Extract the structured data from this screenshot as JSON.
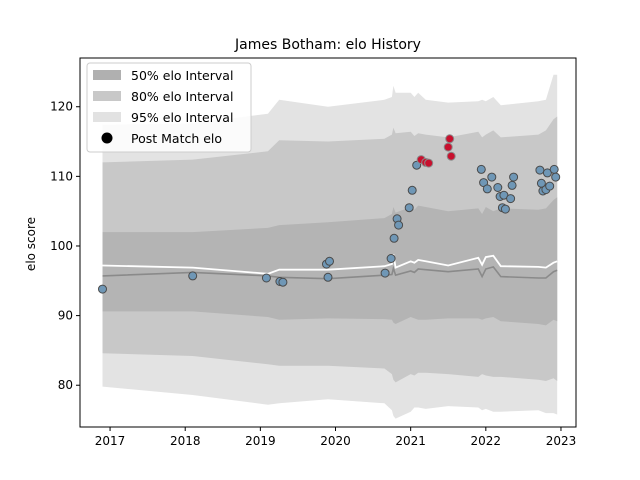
{
  "chart_data": {
    "type": "line",
    "title": "James Botham: elo History",
    "xlabel": "",
    "ylabel": "elo score",
    "xlim": [
      2016.6,
      2023.2
    ],
    "ylim": [
      74,
      127
    ],
    "x_ticks": [
      2017,
      2018,
      2019,
      2020,
      2021,
      2022,
      2023
    ],
    "x_tick_labels": [
      "2017",
      "2018",
      "2019",
      "2020",
      "2021",
      "2022",
      "2023"
    ],
    "y_ticks": [
      80,
      90,
      100,
      110,
      120
    ],
    "y_tick_labels": [
      "80",
      "90",
      "100",
      "110",
      "120"
    ],
    "legend_position": "top-left",
    "legend": [
      {
        "label": "50% elo Interval",
        "color": "#b0b0b0"
      },
      {
        "label": "80% elo Interval",
        "color": "#c8c8c8"
      },
      {
        "label": "95% elo Interval",
        "color": "#e2e2e2"
      },
      {
        "label": "Post Match elo",
        "color": "#000000"
      }
    ],
    "colors": {
      "band50": "#b4b4b4",
      "band80": "#c8c8c8",
      "band95": "#e3e3e3",
      "median_line": "#8a8a8a",
      "mean_line": "#ffffff",
      "point_normal": "#6f97b6",
      "point_high": "#c8102e",
      "point_edge": "#4a4a4a"
    },
    "timeline": {
      "x": [
        2016.9,
        2018.1,
        2019.1,
        2019.25,
        2019.9,
        2020.65,
        2020.75,
        2020.77,
        2020.8,
        2021.0,
        2021.05,
        2021.1,
        2021.2,
        2021.5,
        2021.9,
        2021.95,
        2022.0,
        2022.1,
        2022.2,
        2022.7,
        2022.8,
        2022.9,
        2022.95
      ],
      "median": [
        95.7,
        96.2,
        95.7,
        95.5,
        95.3,
        95.8,
        95.9,
        96.8,
        95.8,
        96.4,
        96.2,
        96.7,
        96.6,
        96.3,
        96.7,
        95.6,
        96.7,
        97.0,
        95.6,
        95.4,
        95.4,
        96.3,
        96.5
      ],
      "mean": [
        97.2,
        96.9,
        96.0,
        96.6,
        96.6,
        97.1,
        97.4,
        98.8,
        96.9,
        97.8,
        97.6,
        98.0,
        97.8,
        97.2,
        98.3,
        97.3,
        98.4,
        98.6,
        97.1,
        97.0,
        96.9,
        97.6,
        97.8
      ],
      "p50": [
        [
          90.6,
          102.0
        ],
        [
          90.6,
          102.0
        ],
        [
          89.8,
          102.6
        ],
        [
          89.4,
          103.0
        ],
        [
          89.6,
          103.4
        ],
        [
          89.5,
          104.0
        ],
        [
          89.4,
          104.6
        ],
        [
          89.0,
          105.6
        ],
        [
          88.8,
          104.8
        ],
        [
          89.8,
          105.6
        ],
        [
          89.6,
          105.2
        ],
        [
          89.4,
          105.8
        ],
        [
          89.4,
          105.6
        ],
        [
          89.6,
          105.0
        ],
        [
          89.6,
          105.4
        ],
        [
          89.4,
          104.6
        ],
        [
          89.6,
          105.6
        ],
        [
          89.8,
          105.0
        ],
        [
          89.2,
          105.4
        ],
        [
          88.8,
          105.2
        ],
        [
          88.6,
          105.4
        ],
        [
          89.4,
          106.6
        ],
        [
          89.2,
          107.0
        ]
      ],
      "p80": [
        [
          84.6,
          112.0
        ],
        [
          84.2,
          112.4
        ],
        [
          83.0,
          113.6
        ],
        [
          82.8,
          115.2
        ],
        [
          82.8,
          115.0
        ],
        [
          82.4,
          115.4
        ],
        [
          81.6,
          116.0
        ],
        [
          80.8,
          117.0
        ],
        [
          80.4,
          116.2
        ],
        [
          81.6,
          116.4
        ],
        [
          81.4,
          115.8
        ],
        [
          81.8,
          116.2
        ],
        [
          81.8,
          116.0
        ],
        [
          81.6,
          115.6
        ],
        [
          81.2,
          116.4
        ],
        [
          81.6,
          115.6
        ],
        [
          81.4,
          116.0
        ],
        [
          81.2,
          116.6
        ],
        [
          81.2,
          115.6
        ],
        [
          80.8,
          116.0
        ],
        [
          80.6,
          116.6
        ],
        [
          81.0,
          118.2
        ],
        [
          80.6,
          118.6
        ]
      ],
      "p95": [
        [
          79.8,
          117.4
        ],
        [
          78.6,
          117.6
        ],
        [
          77.2,
          119.0
        ],
        [
          77.4,
          121.0
        ],
        [
          78.0,
          120.0
        ],
        [
          77.4,
          121.0
        ],
        [
          76.4,
          121.4
        ],
        [
          75.6,
          123.0
        ],
        [
          75.2,
          122.0
        ],
        [
          76.2,
          122.0
        ],
        [
          76.8,
          121.4
        ],
        [
          76.8,
          122.0
        ],
        [
          76.6,
          121.0
        ],
        [
          77.0,
          120.6
        ],
        [
          76.8,
          120.8
        ],
        [
          76.4,
          121.0
        ],
        [
          76.6,
          120.8
        ],
        [
          76.2,
          121.4
        ],
        [
          76.2,
          120.2
        ],
        [
          76.4,
          120.8
        ],
        [
          76.0,
          121.0
        ],
        [
          76.0,
          124.6
        ],
        [
          75.8,
          124.6
        ]
      ]
    },
    "points": [
      {
        "x": 2016.9,
        "y": 93.8,
        "highlight": false
      },
      {
        "x": 2018.1,
        "y": 95.7,
        "highlight": false
      },
      {
        "x": 2019.08,
        "y": 95.4,
        "highlight": false
      },
      {
        "x": 2019.26,
        "y": 94.9,
        "highlight": false
      },
      {
        "x": 2019.3,
        "y": 94.8,
        "highlight": false
      },
      {
        "x": 2019.88,
        "y": 97.4,
        "highlight": false
      },
      {
        "x": 2019.92,
        "y": 97.8,
        "highlight": false
      },
      {
        "x": 2019.9,
        "y": 95.5,
        "highlight": false
      },
      {
        "x": 2020.66,
        "y": 96.1,
        "highlight": false
      },
      {
        "x": 2020.74,
        "y": 98.2,
        "highlight": false
      },
      {
        "x": 2020.78,
        "y": 101.1,
        "highlight": false
      },
      {
        "x": 2020.82,
        "y": 103.9,
        "highlight": false
      },
      {
        "x": 2020.84,
        "y": 103.0,
        "highlight": false
      },
      {
        "x": 2020.98,
        "y": 105.5,
        "highlight": false
      },
      {
        "x": 2021.02,
        "y": 108.0,
        "highlight": false
      },
      {
        "x": 2021.08,
        "y": 111.6,
        "highlight": false
      },
      {
        "x": 2021.14,
        "y": 112.4,
        "highlight": true
      },
      {
        "x": 2021.2,
        "y": 112.0,
        "highlight": true
      },
      {
        "x": 2021.24,
        "y": 111.9,
        "highlight": true
      },
      {
        "x": 2021.5,
        "y": 114.2,
        "highlight": true
      },
      {
        "x": 2021.52,
        "y": 115.4,
        "highlight": true
      },
      {
        "x": 2021.54,
        "y": 112.9,
        "highlight": true
      },
      {
        "x": 2021.94,
        "y": 111.0,
        "highlight": false
      },
      {
        "x": 2021.97,
        "y": 109.1,
        "highlight": false
      },
      {
        "x": 2022.02,
        "y": 108.2,
        "highlight": false
      },
      {
        "x": 2022.08,
        "y": 109.9,
        "highlight": false
      },
      {
        "x": 2022.16,
        "y": 108.4,
        "highlight": false
      },
      {
        "x": 2022.19,
        "y": 107.1,
        "highlight": false
      },
      {
        "x": 2022.22,
        "y": 105.5,
        "highlight": false
      },
      {
        "x": 2022.26,
        "y": 105.3,
        "highlight": false
      },
      {
        "x": 2022.24,
        "y": 107.3,
        "highlight": false
      },
      {
        "x": 2022.33,
        "y": 106.8,
        "highlight": false
      },
      {
        "x": 2022.35,
        "y": 108.7,
        "highlight": false
      },
      {
        "x": 2022.37,
        "y": 109.9,
        "highlight": false
      },
      {
        "x": 2022.72,
        "y": 110.9,
        "highlight": false
      },
      {
        "x": 2022.74,
        "y": 109.0,
        "highlight": false
      },
      {
        "x": 2022.76,
        "y": 107.9,
        "highlight": false
      },
      {
        "x": 2022.8,
        "y": 108.1,
        "highlight": false
      },
      {
        "x": 2022.82,
        "y": 110.5,
        "highlight": false
      },
      {
        "x": 2022.85,
        "y": 108.6,
        "highlight": false
      },
      {
        "x": 2022.91,
        "y": 111.0,
        "highlight": false
      },
      {
        "x": 2022.93,
        "y": 109.9,
        "highlight": false
      }
    ]
  }
}
